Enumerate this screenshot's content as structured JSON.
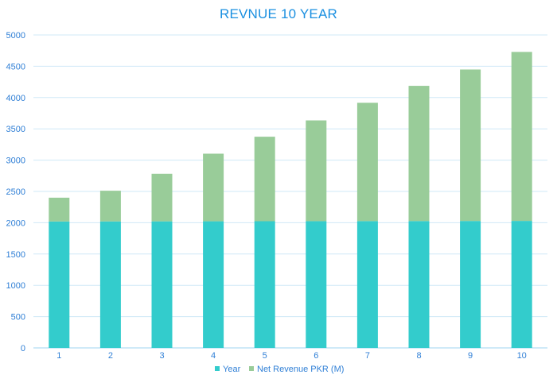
{
  "chart_data": {
    "type": "bar",
    "stacked": true,
    "title": "REVNUE 10 YEAR",
    "categories": [
      "1",
      "2",
      "3",
      "4",
      "5",
      "6",
      "7",
      "8",
      "9",
      "10"
    ],
    "series": [
      {
        "name": "Year",
        "color": "#33cccc",
        "values": [
          2020,
          2021,
          2022,
          2023,
          2024,
          2025,
          2026,
          2027,
          2028,
          2029
        ]
      },
      {
        "name": "Net  Revenue PKR (M)",
        "color": "#99cc99",
        "values": [
          380,
          490,
          760,
          1080,
          1350,
          1610,
          1890,
          2160,
          2420,
          2700
        ]
      }
    ],
    "yticks": [
      "0",
      "500",
      "1000",
      "1500",
      "2000",
      "2500",
      "3000",
      "3500",
      "4000",
      "4500",
      "5000"
    ],
    "ylim": [
      0,
      5000
    ],
    "grid": true,
    "legend": "bottom",
    "xlabel": "",
    "ylabel": ""
  }
}
